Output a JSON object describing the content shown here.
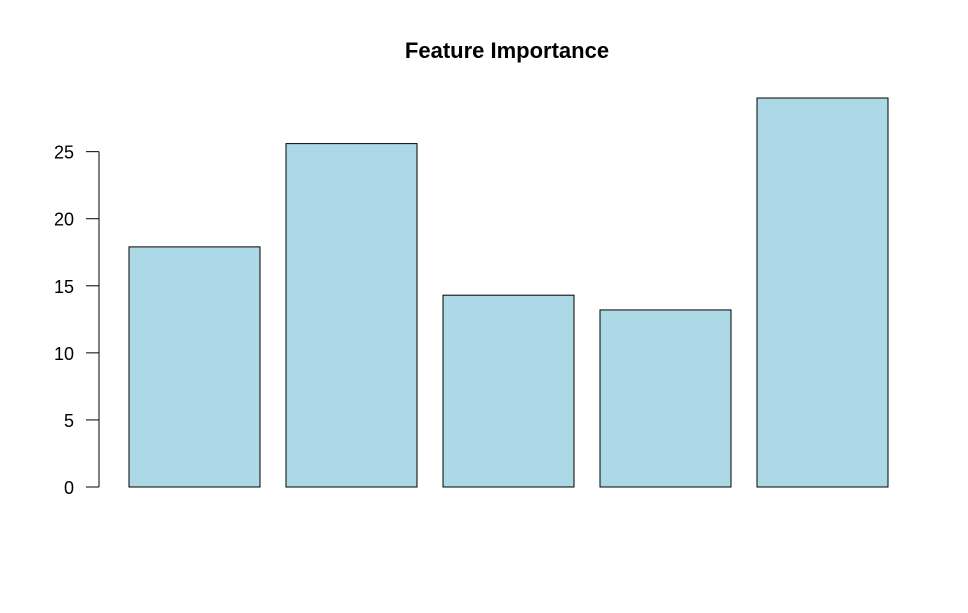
{
  "chart_data": {
    "type": "bar",
    "title": "Feature Importance",
    "xlabel": "",
    "ylabel": "",
    "categories": [
      "",
      "",
      "",
      "",
      ""
    ],
    "values": [
      17.9,
      25.6,
      14.3,
      13.2,
      29.0
    ],
    "ylim": [
      0,
      29.0
    ],
    "y_ticks": [
      0,
      5,
      10,
      15,
      20,
      25
    ],
    "y_tick_labels": [
      "0",
      "5",
      "10",
      "15",
      "20",
      "25"
    ],
    "bar_color": "#ADD8E6",
    "bar_border_color": "#000000",
    "grid": false,
    "legend": "none"
  }
}
